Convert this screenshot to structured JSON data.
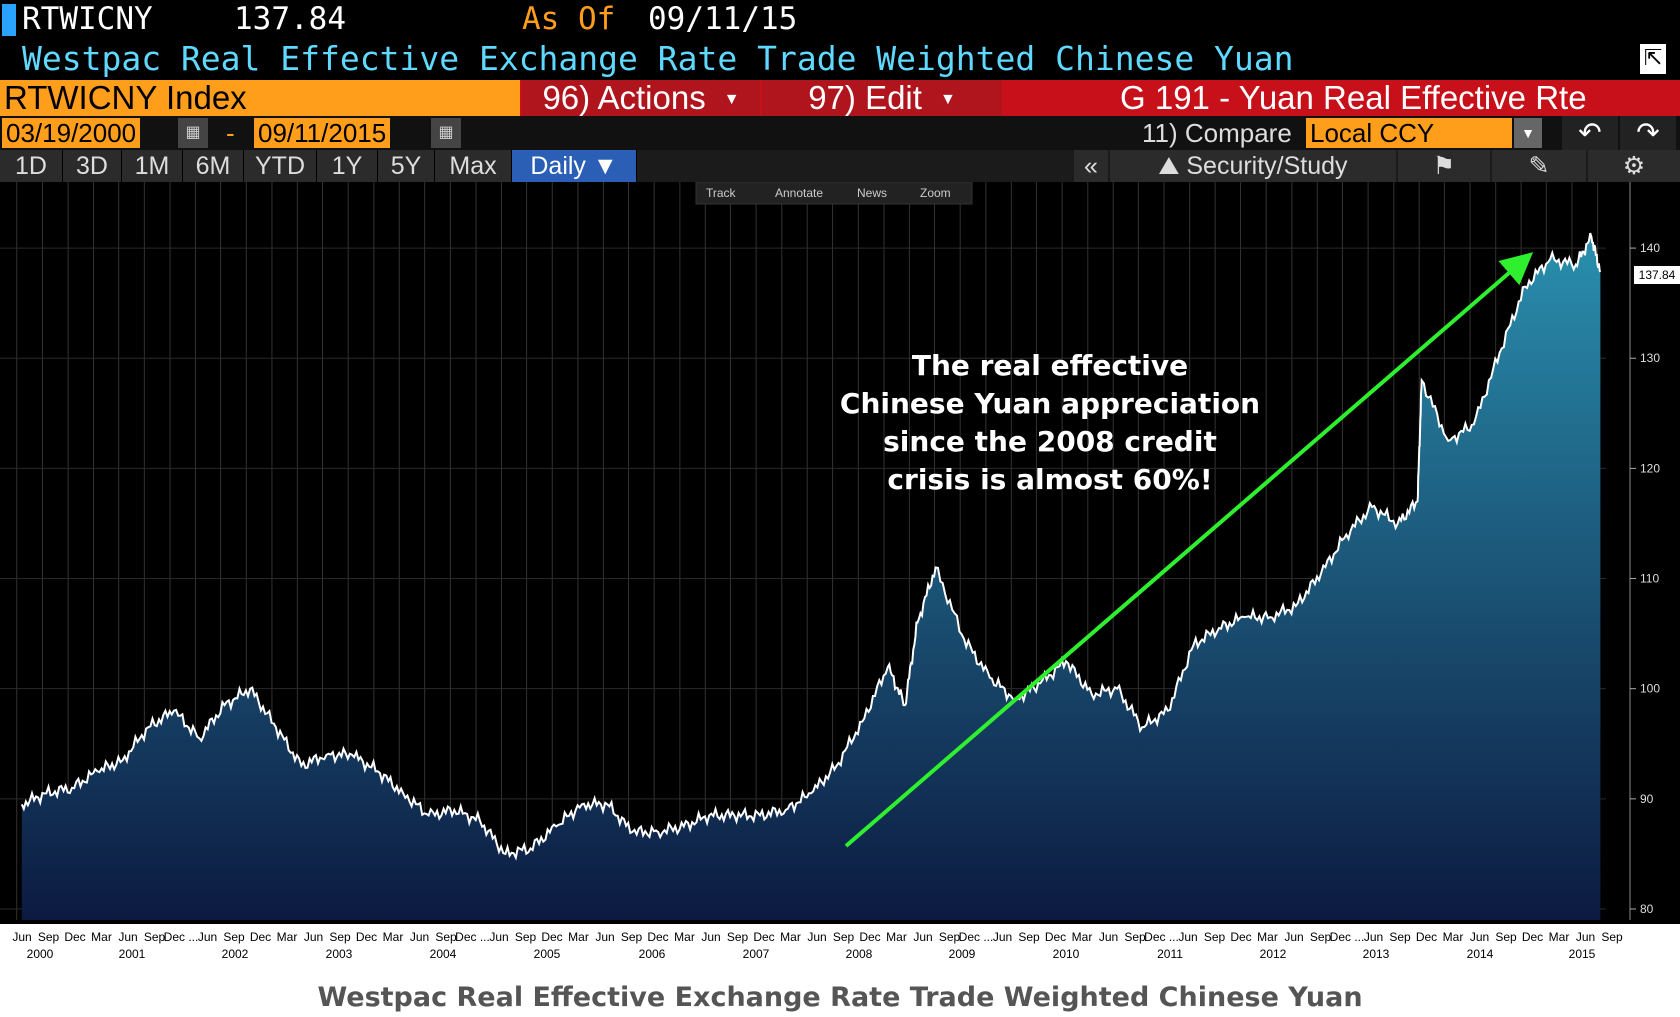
{
  "header": {
    "ticker": "RTWICNY",
    "last": "137.84",
    "as_of_label": "As Of",
    "as_of_date": "09/11/15",
    "description": "Westpac Real Effective Exchange Rate Trade Weighted Chinese Yuan"
  },
  "command_bar": {
    "index": "RTWICNY Index",
    "actions": "96) Actions",
    "edit": "97) Edit",
    "graph_name": "G 191 - Yuan Real Effective Rte"
  },
  "range": {
    "start": "03/19/2000",
    "dash": "-",
    "end": "09/11/2015",
    "compare": "11) Compare",
    "currency": "Local CCY"
  },
  "periods": [
    "1D",
    "3D",
    "1M",
    "6M",
    "YTD",
    "1Y",
    "5Y",
    "Max"
  ],
  "frequency": "Daily",
  "study_label": "Security/Study",
  "chart_tools": [
    "Track",
    "Annotate",
    "News",
    "Zoom"
  ],
  "footer": "Westpac Real Effective Exchange Rate Trade Weighted Chinese Yuan",
  "colors": {
    "accent": "#ff9e1b",
    "header_blue": "#5fd9ff",
    "command_red": "#c8101a",
    "arrow": "#2ef02e",
    "fill_bottom": "#0c1a40",
    "fill_top": "#2a8fae"
  },
  "chart_data": {
    "type": "area",
    "series": [
      {
        "values": [
          [
            "2000-03-19",
            89.5
          ],
          [
            "2000-06-15",
            90.5
          ],
          [
            "2000-09-15",
            91.0
          ],
          [
            "2000-12-15",
            92.5
          ],
          [
            "2001-03-15",
            93.5
          ],
          [
            "2001-06-15",
            96.5
          ],
          [
            "2001-09-15",
            98.0
          ],
          [
            "2001-12-15",
            95.5
          ],
          [
            "2002-03-15",
            98.5
          ],
          [
            "2002-06-15",
            100.0
          ],
          [
            "2002-09-15",
            96.5
          ],
          [
            "2002-12-15",
            93.0
          ],
          [
            "2003-03-15",
            94.0
          ],
          [
            "2003-06-15",
            94.0
          ],
          [
            "2003-09-15",
            92.5
          ],
          [
            "2003-12-15",
            90.5
          ],
          [
            "2004-03-15",
            88.5
          ],
          [
            "2004-06-15",
            89.0
          ],
          [
            "2004-09-15",
            88.0
          ],
          [
            "2004-12-15",
            85.0
          ],
          [
            "2005-03-15",
            85.5
          ],
          [
            "2005-06-15",
            87.5
          ],
          [
            "2005-09-15",
            89.5
          ],
          [
            "2005-12-15",
            89.5
          ],
          [
            "2006-03-15",
            87.0
          ],
          [
            "2006-06-15",
            87.0
          ],
          [
            "2006-09-15",
            87.5
          ],
          [
            "2006-12-15",
            88.5
          ],
          [
            "2007-03-15",
            88.5
          ],
          [
            "2007-06-15",
            88.5
          ],
          [
            "2007-09-15",
            89.0
          ],
          [
            "2007-12-15",
            90.5
          ],
          [
            "2008-03-15",
            93.0
          ],
          [
            "2008-06-15",
            97.0
          ],
          [
            "2008-09-15",
            102.0
          ],
          [
            "2008-11-15",
            98.5
          ],
          [
            "2008-12-30",
            106.0
          ],
          [
            "2009-03-05",
            111.0
          ],
          [
            "2009-06-15",
            104.5
          ],
          [
            "2009-09-15",
            101.0
          ],
          [
            "2009-12-15",
            99.0
          ],
          [
            "2010-03-15",
            100.5
          ],
          [
            "2010-06-15",
            102.5
          ],
          [
            "2010-09-15",
            99.5
          ],
          [
            "2010-12-15",
            100.0
          ],
          [
            "2011-03-15",
            96.5
          ],
          [
            "2011-06-15",
            98.0
          ],
          [
            "2011-09-15",
            104.0
          ],
          [
            "2011-12-15",
            105.5
          ],
          [
            "2012-03-15",
            106.5
          ],
          [
            "2012-06-15",
            106.5
          ],
          [
            "2012-09-15",
            107.5
          ],
          [
            "2012-12-15",
            110.5
          ],
          [
            "2013-03-15",
            114.0
          ],
          [
            "2013-06-15",
            116.5
          ],
          [
            "2013-09-15",
            115.0
          ],
          [
            "2013-11-25",
            117.0
          ],
          [
            "2013-12-10",
            128.0
          ],
          [
            "2014-03-15",
            122.5
          ],
          [
            "2014-06-15",
            124.0
          ],
          [
            "2014-09-15",
            130.5
          ],
          [
            "2014-12-15",
            136.5
          ],
          [
            "2015-03-15",
            139.0
          ],
          [
            "2015-06-15",
            138.5
          ],
          [
            "2015-08-10",
            141.0
          ],
          [
            "2015-09-11",
            137.84
          ]
        ]
      }
    ],
    "y_ticks": [
      "80",
      "90",
      "100",
      "110",
      "120",
      "130",
      "140"
    ],
    "ylim": [
      79,
      146
    ],
    "last_value_label": "137.84",
    "x_month_labels": [
      "Jun",
      "Sep",
      "Dec",
      "Mar",
      "Jun",
      "Sep",
      "Dec ...",
      "Jun",
      "Sep",
      "Dec",
      "Mar",
      "Jun",
      "Sep",
      "Dec",
      "Mar",
      "Jun",
      "Sep",
      "Dec ...",
      "Jun",
      "Sep",
      "Dec",
      "Mar",
      "Jun",
      "Sep",
      "Dec",
      "Mar",
      "Jun",
      "Sep",
      "Dec",
      "Mar",
      "Jun",
      "Sep",
      "Dec",
      "Mar",
      "Jun",
      "Sep",
      "Dec ...",
      "Jun",
      "Sep",
      "Dec",
      "Mar",
      "Jun",
      "Sep",
      "Dec ...",
      "Jun",
      "Sep",
      "Dec",
      "Mar",
      "Jun",
      "Sep",
      "Dec ...",
      "Jun",
      "Sep",
      "Dec",
      "Mar",
      "Jun",
      "Sep",
      "Dec",
      "Mar",
      "Jun",
      "Sep"
    ],
    "x_year_labels": [
      "2000",
      "2001",
      "2002",
      "2003",
      "2004",
      "2005",
      "2006",
      "2007",
      "2008",
      "2009",
      "2010",
      "2011",
      "2012",
      "2013",
      "2014",
      "2015"
    ],
    "annotation": [
      "The real effective",
      "Chinese Yuan appreciation",
      "since the 2008 credit",
      "crisis is almost 60%!"
    ],
    "grid": true
  }
}
